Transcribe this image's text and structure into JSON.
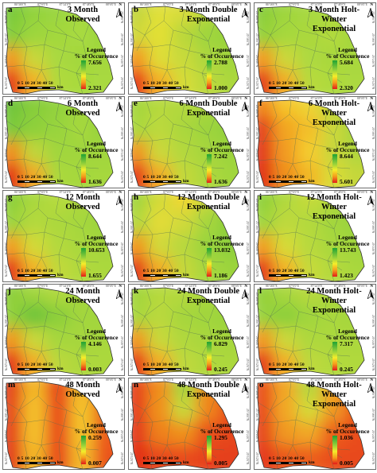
{
  "figure": {
    "panels": [
      {
        "id": "a",
        "title_lines": [
          "3 Month",
          "Observed"
        ],
        "legend_title_lines": [
          "Legend",
          "% of Occurrence"
        ],
        "legend_max": "7.656",
        "legend_min": "2.321",
        "surface": [
          [
            "#79c93a",
            "#93d33c",
            "#9bd640",
            "#a6d93f",
            "#8ed13b"
          ],
          [
            "#85cd3a",
            "#9dd63c",
            "#a3d83e",
            "#a8da3f",
            "#9ad53d"
          ],
          [
            "#f09a20",
            "#c8d83a",
            "#a9d93f",
            "#a3d83e",
            "#a4d83e"
          ],
          [
            "#e4381a",
            "#f3b327",
            "#b0da3c",
            "#a8da3e",
            "#a9d93f"
          ]
        ]
      },
      {
        "id": "b",
        "title_lines": [
          "3 Month Double",
          "Exponential"
        ],
        "legend_title_lines": [
          "Legend",
          "% of Occurrence"
        ],
        "legend_max": "2.788",
        "legend_min": "1.000",
        "surface": [
          [
            "#c2d63c",
            "#e0e03a",
            "#d8dc3a",
            "#b6d63d",
            "#a2d53d"
          ],
          [
            "#cfd83b",
            "#e3e035",
            "#b9d73b",
            "#9fd53d",
            "#96d23c"
          ],
          [
            "#f29b22",
            "#dedd37",
            "#c8da3b",
            "#acd73e",
            "#a1d53d"
          ],
          [
            "#e6341a",
            "#f4b128",
            "#d5dc39",
            "#bcd93c",
            "#acd83e"
          ]
        ]
      },
      {
        "id": "c",
        "title_lines": [
          "3 Month Holt-",
          "Winter",
          "Exponential"
        ],
        "legend_title_lines": [
          "Legend",
          "% of Occurrence"
        ],
        "legend_max": "5.684",
        "legend_min": "2.320",
        "surface": [
          [
            "#89cd3a",
            "#9fd53d",
            "#a8d93f",
            "#add93f",
            "#98d43c"
          ],
          [
            "#95d13b",
            "#a6d83e",
            "#aad83e",
            "#b2da3e",
            "#a1d63d"
          ],
          [
            "#f19b20",
            "#cbd83a",
            "#add93f",
            "#a9d83e",
            "#a8d83e"
          ],
          [
            "#e3351a",
            "#f2ae26",
            "#b8da3d",
            "#aeda3e",
            "#acd93f"
          ]
        ]
      },
      {
        "id": "d",
        "title_lines": [
          "6 Month",
          "Observed"
        ],
        "legend_title_lines": [
          "Legend",
          "% of Occurrence"
        ],
        "legend_max": "8.644",
        "legend_min": "1.636",
        "surface": [
          [
            "#6fc43a",
            "#87cd3b",
            "#93d23c",
            "#a3d73e",
            "#8ccf3b"
          ],
          [
            "#7cc93a",
            "#8ed03b",
            "#98d43c",
            "#a5d83e",
            "#94d23c"
          ],
          [
            "#ef8f1f",
            "#c0d63b",
            "#a1d63d",
            "#a0d63d",
            "#a1d63d"
          ],
          [
            "#e22f19",
            "#f2a926",
            "#aad93e",
            "#a5d83e",
            "#a6d83e"
          ]
        ]
      },
      {
        "id": "e",
        "title_lines": [
          "6 Month Double",
          "Exponential"
        ],
        "legend_title_lines": [
          "Legend",
          "% of Occurrence"
        ],
        "legend_max": "7.242",
        "legend_min": "1.636",
        "surface": [
          [
            "#a4d63d",
            "#b6d93c",
            "#b2d83c",
            "#abd73d",
            "#98d33c"
          ],
          [
            "#abd83d",
            "#bbd93c",
            "#aad73d",
            "#9dd43d",
            "#90d03c"
          ],
          [
            "#f09520",
            "#cbd83a",
            "#b3d83c",
            "#a6d63d",
            "#9cd43d"
          ],
          [
            "#e5321a",
            "#f3ad27",
            "#c3d93b",
            "#add83e",
            "#a2d63d"
          ]
        ]
      },
      {
        "id": "f",
        "title_lines": [
          "6 Month Holt-",
          "Winter",
          "Exponential"
        ],
        "legend_title_lines": [
          "Legend",
          "% of Occurrence"
        ],
        "legend_max": "8.644",
        "legend_min": "5.601",
        "surface": [
          [
            "#f08a1f",
            "#f5c52b",
            "#eed434",
            "#bcd83c",
            "#9bd33c"
          ],
          [
            "#e4421b",
            "#f2a624",
            "#f3c02a",
            "#cbd83a",
            "#a3d43d"
          ],
          [
            "#e23a1a",
            "#f29c21",
            "#f4cc2d",
            "#c8d63b",
            "#b1d73c"
          ],
          [
            "#e12d19",
            "#f08f1f",
            "#f2b727",
            "#d9dc39",
            "#c4d73b"
          ]
        ]
      },
      {
        "id": "g",
        "title_lines": [
          "12 Month",
          "Observed"
        ],
        "legend_title_lines": [
          "Legend",
          "% of Occurrence"
        ],
        "legend_max": "10.653",
        "legend_min": "1.655",
        "surface": [
          [
            "#8ccf3b",
            "#a9d83e",
            "#b6da3d",
            "#aed83e",
            "#95d23c"
          ],
          [
            "#9bd43c",
            "#b3d93d",
            "#acd83e",
            "#a5d73e",
            "#9ad43c"
          ],
          [
            "#f09e21",
            "#d2da39",
            "#b3d93d",
            "#a9d83e",
            "#a5d73e"
          ],
          [
            "#e3341a",
            "#f3b228",
            "#c1d93b",
            "#b1d93d",
            "#abd83e"
          ]
        ]
      },
      {
        "id": "h",
        "title_lines": [
          "12 Month Double",
          "Exponential"
        ],
        "legend_title_lines": [
          "Legend",
          "% of Occurrence"
        ],
        "legend_max": "13.032",
        "legend_min": "1.186",
        "surface": [
          [
            "#a1d53d",
            "#d3da39",
            "#f0d733",
            "#c8d83a",
            "#93d13c"
          ],
          [
            "#b4d83c",
            "#e3db37",
            "#cfd93a",
            "#a6d63d",
            "#88cd3b"
          ],
          [
            "#f0971f",
            "#d0d93a",
            "#b8d83c",
            "#9ad43c",
            "#8fd03c"
          ],
          [
            "#e3321a",
            "#f2ad27",
            "#c5d83b",
            "#a7d73e",
            "#9cd43d"
          ]
        ]
      },
      {
        "id": "i",
        "title_lines": [
          "12 Month Holt-",
          "Winter",
          "Exponential"
        ],
        "legend_title_lines": [
          "Legend",
          "% of Occurrence"
        ],
        "legend_max": "13.743",
        "legend_min": "1.423",
        "surface": [
          [
            "#8fd03b",
            "#b0d93d",
            "#c5da3b",
            "#b4d93d",
            "#93d13c"
          ],
          [
            "#9fd53c",
            "#bdd93c",
            "#b3d93d",
            "#a3d63d",
            "#98d33c"
          ],
          [
            "#f09e21",
            "#d6db39",
            "#b7d93d",
            "#a8d83e",
            "#a2d63d"
          ],
          [
            "#e3341a",
            "#f3b328",
            "#c6da3b",
            "#b3d93d",
            "#a9d83e"
          ]
        ]
      },
      {
        "id": "j",
        "title_lines": [
          "24 Month",
          "Observed"
        ],
        "legend_title_lines": [
          "Legend",
          "% of Occurrence"
        ],
        "legend_max": "4.146",
        "legend_min": "0.003",
        "surface": [
          [
            "#8ccf3b",
            "#a2d63d",
            "#b1d93d",
            "#a6d63d",
            "#99d33c"
          ],
          [
            "#93d13b",
            "#6fc43a",
            "#8ccf3b",
            "#a3d63d",
            "#a0d53d"
          ],
          [
            "#ef961f",
            "#c8d83a",
            "#a6d73e",
            "#a6d63d",
            "#a8d83e"
          ],
          [
            "#e3331a",
            "#f3ad26",
            "#bbd93c",
            "#aed83e",
            "#acd83e"
          ]
        ]
      },
      {
        "id": "k",
        "title_lines": [
          "24 Month Double",
          "Exponential"
        ],
        "legend_title_lines": [
          "Legend",
          "% of Occurrence"
        ],
        "legend_max": "6.829",
        "legend_min": "0.245",
        "surface": [
          [
            "#a2d53d",
            "#b6d93c",
            "#b4d93c",
            "#abd73d",
            "#9cd43d"
          ],
          [
            "#a9d73d",
            "#b9d93c",
            "#a6d63d",
            "#a1d53d",
            "#99d33c"
          ],
          [
            "#f09820",
            "#c7d83b",
            "#b0d83d",
            "#a8d73e",
            "#a6d73e"
          ],
          [
            "#e4351a",
            "#f3ae27",
            "#bfd93c",
            "#b1d83d",
            "#acd83e"
          ]
        ]
      },
      {
        "id": "l",
        "title_lines": [
          "24 Month Holt-",
          "Winter",
          "Exponential"
        ],
        "legend_title_lines": [
          "Legend",
          "% of Occurrence"
        ],
        "legend_max": "7.317",
        "legend_min": "0.245",
        "surface": [
          [
            "#93d13b",
            "#a9d73e",
            "#b7d93d",
            "#add83e",
            "#9ed43d"
          ],
          [
            "#9ad33c",
            "#8ccf3b",
            "#a1d53d",
            "#a9d83e",
            "#a5d73e"
          ],
          [
            "#f09920",
            "#cbd83a",
            "#aed83e",
            "#abd83e",
            "#acd83e"
          ],
          [
            "#e3341a",
            "#f3af27",
            "#bed93c",
            "#b3d93d",
            "#b0d93d"
          ]
        ]
      },
      {
        "id": "m",
        "title_lines": [
          "48 Month",
          "Observed"
        ],
        "legend_title_lines": [
          "Legend",
          "% of Occurrence"
        ],
        "legend_max": "0.259",
        "legend_min": "0.007",
        "surface": [
          [
            "#e4421b",
            "#f3b828",
            "#e7451c",
            "#f3bb29",
            "#e9501d"
          ],
          [
            "#e5481b",
            "#f4c02a",
            "#e94c1d",
            "#f4c32b",
            "#eb581e"
          ],
          [
            "#e5431b",
            "#f4c02a",
            "#e94c1d",
            "#f4c32b",
            "#ec5b1e"
          ],
          [
            "#e23a1a",
            "#f3b628",
            "#e8491c",
            "#f3ba29",
            "#ea541e"
          ]
        ]
      },
      {
        "id": "n",
        "title_lines": [
          "48 Month Double",
          "Exponential"
        ],
        "legend_title_lines": [
          "Legend",
          "% of Occurrence"
        ],
        "legend_max": "1.295",
        "legend_min": "0.005",
        "surface": [
          [
            "#e6451b",
            "#f08f1f",
            "#a5d63d",
            "#f08d1f",
            "#e9521d"
          ],
          [
            "#e5401b",
            "#f0921f",
            "#c8d83a",
            "#ef861f",
            "#e8491c"
          ],
          [
            "#e33a1a",
            "#ee801e",
            "#f0911f",
            "#e8511d",
            "#e6461c"
          ],
          [
            "#e22f19",
            "#e8491c",
            "#e94c1d",
            "#e6431b",
            "#e5411b"
          ]
        ]
      },
      {
        "id": "o",
        "title_lines": [
          "48 Month Holt-",
          "Winter",
          "Exponential"
        ],
        "legend_title_lines": [
          "Legend",
          "% of Occurrence"
        ],
        "legend_max": "1.036",
        "legend_min": "0.005",
        "surface": [
          [
            "#e9521d",
            "#f2a826",
            "#b6d73c",
            "#f2a224",
            "#eb5b1e"
          ],
          [
            "#e84b1c",
            "#f2a925",
            "#d4d939",
            "#f09920",
            "#ea541e"
          ],
          [
            "#e6461c",
            "#f09820",
            "#f2a826",
            "#ec5f1f",
            "#e94e1d"
          ],
          [
            "#e3371a",
            "#eb581e",
            "#ec5e1f",
            "#e94e1d",
            "#e8481c"
          ]
        ]
      }
    ],
    "scale_bar": {
      "ticks": "0 5 10   20   30   40   50",
      "unit": "km"
    },
    "north_label": "N",
    "coords_top": [
      "86°36'0\"E",
      "87°0'0\"E",
      "87°24'0\"E",
      "87°48'0\"E",
      "88°0'0\"E"
    ],
    "coords_side": [
      "25°48'0\"N",
      "25°36'0\"N",
      "25°24'0\"N",
      "25°12'0\"N"
    ]
  }
}
